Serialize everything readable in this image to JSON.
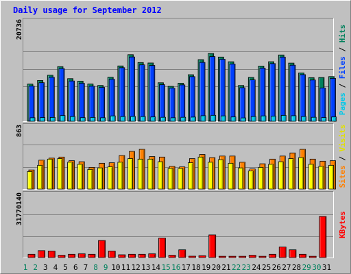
{
  "chart_data": {
    "type": "bar",
    "title": "Daily usage for September 2012",
    "x": [
      "1",
      "2",
      "3",
      "4",
      "5",
      "6",
      "7",
      "8",
      "9",
      "10",
      "11",
      "12",
      "13",
      "14",
      "15",
      "16",
      "17",
      "18",
      "19",
      "20",
      "21",
      "22",
      "23",
      "24",
      "25",
      "26",
      "27",
      "28",
      "29",
      "30",
      "31"
    ],
    "weekend_days": [
      "1",
      "2",
      "8",
      "9",
      "15",
      "16",
      "22",
      "23",
      "29",
      "30"
    ],
    "panels": [
      {
        "name": "top",
        "ylabel_parts": [
          "Pages",
          "/",
          "Files",
          "/",
          "Hits"
        ],
        "ymax_label": "20736",
        "ymax": 20736,
        "series": [
          {
            "name": "Hits",
            "color": "#00805c",
            "values": [
              11030,
              12100,
              13670,
              16200,
              12650,
              11910,
              11050,
              10630,
              13060,
              16420,
              19760,
              17420,
              17290,
              11430,
              10360,
              11290,
              13810,
              18290,
              20110,
              19050,
              17660,
              10620,
              13010,
              16370,
              17670,
              19670,
              17260,
              14340,
              12930,
              12980,
              13260
            ]
          },
          {
            "name": "Files",
            "color": "#0040ff",
            "values": [
              10430,
              11450,
              13040,
              15630,
              11950,
              11270,
              10400,
              10050,
              12460,
              15890,
              19070,
              16740,
              16560,
              10850,
              9830,
              10790,
              13240,
              17460,
              19200,
              18400,
              16980,
              9960,
              12290,
              15770,
              17110,
              19040,
              16630,
              13830,
              12240,
              9880,
              12720
            ]
          },
          {
            "name": "Pages",
            "color": "#00c8e8",
            "values": [
              1040,
              1090,
              1140,
              1690,
              1390,
              1070,
              1140,
              1040,
              1590,
              1390,
              1420,
              1390,
              1280,
              1180,
              1040,
              1180,
              1240,
              1640,
              1760,
              1590,
              1280,
              990,
              1390,
              1590,
              1500,
              1740,
              1640,
              1390,
              1180,
              1090,
              1280
            ]
          }
        ]
      },
      {
        "name": "middle",
        "ylabel_parts": [
          "Sites",
          "/",
          "Visits"
        ],
        "ymax_label": "863",
        "ymax": 863,
        "series": [
          {
            "name": "Visits",
            "color": "#ff8000",
            "values": [
              370,
              560,
              600,
              620,
              550,
              530,
              420,
              500,
              510,
              650,
              730,
              770,
              630,
              620,
              440,
              430,
              590,
              670,
              610,
              640,
              640,
              520,
              390,
              490,
              580,
              640,
              700,
              770,
              580,
              540,
              550
            ]
          },
          {
            "name": "Sites",
            "color": "#ffff00",
            "values": [
              340,
              460,
              580,
              590,
              520,
              480,
              380,
              410,
              430,
              520,
              590,
              580,
              580,
              530,
              400,
              400,
              510,
              620,
              520,
              570,
              500,
              410,
              350,
              420,
              480,
              530,
              590,
              610,
              480,
              440,
              460
            ]
          }
        ]
      },
      {
        "name": "bottom",
        "ylabel_parts": [
          "KBytes"
        ],
        "ymax_label": "31770140",
        "ymax": 31770140,
        "series": [
          {
            "name": "KBytes",
            "color": "#ff0000",
            "values": [
              2380000,
              5110000,
              4760000,
              1670000,
              2380000,
              2790000,
              2380000,
              12560000,
              4760000,
              2030000,
              2380000,
              2380000,
              2790000,
              14330000,
              1670000,
              5710000,
              1020000,
              1370000,
              16670000,
              940000,
              940000,
              940000,
              1670000,
              940000,
              2380000,
              7770000,
              5710000,
              2380000,
              940000,
              30260000,
              0
            ]
          }
        ]
      }
    ],
    "colors": {
      "background": "#c0c0c0",
      "grid": "#808080",
      "title": "#0000ff",
      "weekday_label": "#000000",
      "weekend_label": "#00805c"
    }
  }
}
